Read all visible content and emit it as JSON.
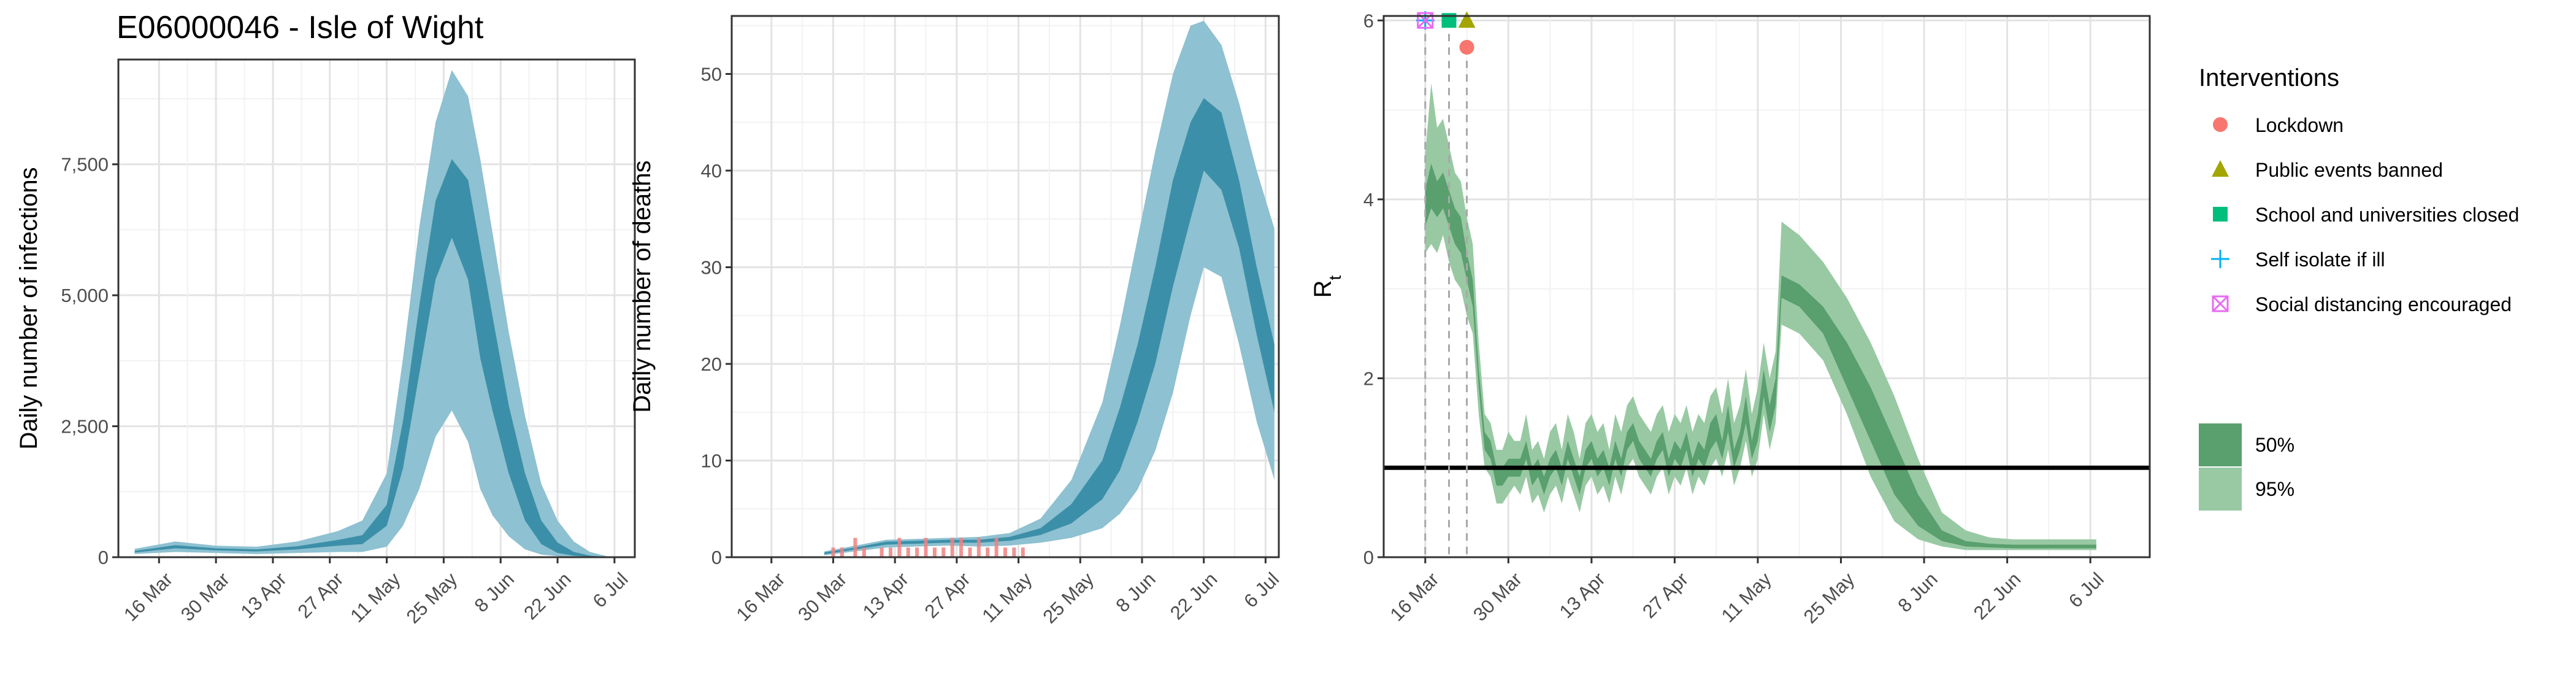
{
  "title": "E06000046 - Isle of Wight",
  "colors": {
    "band95_blue": "#8ec1d1",
    "band50_blue": "#3c8fa8",
    "band95_green": "#98c9a3",
    "band50_green": "#5a9f6e",
    "observed_deaths": "#f08080",
    "reference_line": "#000000",
    "lockdown": "#f8766d",
    "public_events": "#a3a500",
    "schools": "#00bf7d",
    "self_isolate": "#00b0f6",
    "social_distancing": "#e76bf3"
  },
  "chart_data": [
    {
      "type": "area",
      "name": "infections",
      "ylabel": "Daily number of infections",
      "xlabel": "",
      "x_ticks": [
        "16 Mar",
        "30 Mar",
        "13 Apr",
        "27 Apr",
        "11 May",
        "25 May",
        "8 Jun",
        "22 Jun",
        "6 Jul"
      ],
      "y_ticks": [
        "0",
        "2,500",
        "5,000",
        "7,500"
      ],
      "ylim": [
        0,
        9500
      ],
      "x_start": "2020-03-10",
      "bands": {
        "x": [
          "2020-03-10",
          "2020-03-20",
          "2020-03-30",
          "2020-04-09",
          "2020-04-19",
          "2020-04-29",
          "2020-05-05",
          "2020-05-11",
          "2020-05-15",
          "2020-05-19",
          "2020-05-23",
          "2020-05-27",
          "2020-05-31",
          "2020-06-03",
          "2020-06-06",
          "2020-06-10",
          "2020-06-14",
          "2020-06-18",
          "2020-06-22",
          "2020-06-26",
          "2020-06-30",
          "2020-07-04"
        ],
        "lo95": [
          60,
          100,
          80,
          60,
          80,
          100,
          100,
          200,
          600,
          1300,
          2300,
          2800,
          2200,
          1300,
          800,
          400,
          150,
          50,
          20,
          10,
          5,
          0
        ],
        "hi95": [
          160,
          300,
          220,
          200,
          300,
          500,
          700,
          1600,
          3800,
          6300,
          8300,
          9300,
          8800,
          7600,
          6200,
          4300,
          2700,
          1400,
          700,
          300,
          100,
          20
        ],
        "lo50": [
          90,
          170,
          130,
          110,
          150,
          220,
          250,
          600,
          1700,
          3500,
          5300,
          6100,
          5300,
          3800,
          2800,
          1600,
          700,
          250,
          80,
          30,
          10,
          2
        ],
        "hi50": [
          120,
          230,
          170,
          150,
          210,
          330,
          420,
          1000,
          2600,
          4800,
          6800,
          7600,
          7200,
          5900,
          4600,
          2900,
          1600,
          700,
          280,
          100,
          30,
          8
        ]
      }
    },
    {
      "type": "area",
      "name": "deaths",
      "ylabel": "Daily number of deaths",
      "xlabel": "",
      "x_ticks": [
        "16 Mar",
        "30 Mar",
        "13 Apr",
        "27 Apr",
        "11 May",
        "25 May",
        "8 Jun",
        "22 Jun",
        "6 Jul"
      ],
      "y_ticks": [
        "0",
        "10",
        "20",
        "30",
        "40",
        "50"
      ],
      "ylim": [
        0,
        56
      ],
      "bands": {
        "x": [
          "2020-03-28",
          "2020-04-04",
          "2020-04-11",
          "2020-04-18",
          "2020-04-25",
          "2020-05-02",
          "2020-05-09",
          "2020-05-16",
          "2020-05-23",
          "2020-05-30",
          "2020-06-03",
          "2020-06-07",
          "2020-06-11",
          "2020-06-15",
          "2020-06-19",
          "2020-06-22",
          "2020-06-26",
          "2020-06-30",
          "2020-07-04",
          "2020-07-08"
        ],
        "lo95": [
          0.2,
          0.6,
          1.0,
          1.1,
          1.2,
          1.1,
          1.2,
          1.5,
          2.0,
          3.0,
          4.5,
          7.0,
          11.0,
          17.0,
          25.0,
          30.0,
          29.0,
          22.0,
          14.0,
          8.0
        ],
        "hi95": [
          0.6,
          1.2,
          1.8,
          1.9,
          2.0,
          2.1,
          2.5,
          4.0,
          8.0,
          16.0,
          24.0,
          33.0,
          42.0,
          50.0,
          55.0,
          55.5,
          53.0,
          47.0,
          40.0,
          34.0
        ],
        "lo50": [
          0.3,
          0.8,
          1.3,
          1.4,
          1.5,
          1.5,
          1.7,
          2.3,
          3.5,
          6.0,
          9.0,
          14.0,
          20.0,
          28.0,
          35.0,
          40.0,
          38.0,
          32.0,
          23.0,
          15.0
        ],
        "hi50": [
          0.5,
          1.0,
          1.6,
          1.7,
          1.8,
          1.8,
          2.1,
          3.0,
          5.5,
          10.0,
          15.5,
          22.0,
          30.0,
          39.0,
          45.0,
          47.5,
          46.0,
          39.0,
          30.0,
          22.0
        ]
      },
      "observed_x": [
        "2020-03-30",
        "2020-04-01",
        "2020-04-03",
        "2020-04-04",
        "2020-04-06",
        "2020-04-08",
        "2020-04-10",
        "2020-04-12",
        "2020-04-14",
        "2020-04-16",
        "2020-04-18",
        "2020-04-20",
        "2020-04-22",
        "2020-04-24",
        "2020-04-26",
        "2020-04-28",
        "2020-04-30",
        "2020-05-02",
        "2020-05-04",
        "2020-05-06",
        "2020-05-08",
        "2020-05-10",
        "2020-05-12"
      ],
      "observed_y": [
        1,
        1,
        0,
        2,
        1,
        0,
        1,
        1,
        2,
        1,
        1,
        2,
        1,
        1,
        2,
        2,
        1,
        2,
        1,
        2,
        1,
        1,
        1
      ]
    },
    {
      "type": "area",
      "name": "rt",
      "ylabel": "R",
      "ylabel_sub": "t",
      "xlabel": "",
      "x_ticks": [
        "16 Mar",
        "30 Mar",
        "13 Apr",
        "27 Apr",
        "11 May",
        "25 May",
        "8 Jun",
        "22 Jun",
        "6 Jul"
      ],
      "y_ticks": [
        "0",
        "2",
        "4",
        "6"
      ],
      "ylim": [
        0,
        6.05
      ],
      "reference_line": 1,
      "bands": {
        "x": [
          "2020-03-16",
          "2020-03-17",
          "2020-03-18",
          "2020-03-19",
          "2020-03-20",
          "2020-03-21",
          "2020-03-22",
          "2020-03-23",
          "2020-03-24",
          "2020-03-25",
          "2020-03-26",
          "2020-03-27",
          "2020-03-28",
          "2020-03-29",
          "2020-03-30",
          "2020-03-31",
          "2020-04-01",
          "2020-04-02",
          "2020-04-03",
          "2020-04-04",
          "2020-04-05",
          "2020-04-06",
          "2020-04-07",
          "2020-04-08",
          "2020-04-09",
          "2020-04-10",
          "2020-04-11",
          "2020-04-12",
          "2020-04-13",
          "2020-04-14",
          "2020-04-15",
          "2020-04-16",
          "2020-04-17",
          "2020-04-18",
          "2020-04-19",
          "2020-04-20",
          "2020-04-21",
          "2020-04-22",
          "2020-04-23",
          "2020-04-24",
          "2020-04-25",
          "2020-04-26",
          "2020-04-27",
          "2020-04-28",
          "2020-04-29",
          "2020-04-30",
          "2020-05-01",
          "2020-05-02",
          "2020-05-03",
          "2020-05-04",
          "2020-05-05",
          "2020-05-06",
          "2020-05-07",
          "2020-05-08",
          "2020-05-09",
          "2020-05-10",
          "2020-05-11",
          "2020-05-12",
          "2020-05-13",
          "2020-05-14",
          "2020-05-15",
          "2020-05-18",
          "2020-05-22",
          "2020-05-26",
          "2020-05-30",
          "2020-06-03",
          "2020-06-07",
          "2020-06-11",
          "2020-06-15",
          "2020-06-19",
          "2020-06-23",
          "2020-06-27",
          "2020-07-01",
          "2020-07-05",
          "2020-07-07"
        ],
        "lo95": [
          3.4,
          3.5,
          3.4,
          3.6,
          3.3,
          3.1,
          3.0,
          2.7,
          2.5,
          1.6,
          1.0,
          0.9,
          0.6,
          0.6,
          0.7,
          0.8,
          0.7,
          0.9,
          0.6,
          0.7,
          0.5,
          0.7,
          0.8,
          0.6,
          0.9,
          0.7,
          0.5,
          0.8,
          0.9,
          0.7,
          0.8,
          0.6,
          0.9,
          0.7,
          1.0,
          1.1,
          0.9,
          0.8,
          0.7,
          0.9,
          1.0,
          0.7,
          0.9,
          0.8,
          1.0,
          0.7,
          0.9,
          0.8,
          1.0,
          1.1,
          0.9,
          1.2,
          0.8,
          1.0,
          1.3,
          0.9,
          1.1,
          1.6,
          1.2,
          1.5,
          2.6,
          2.5,
          2.2,
          1.6,
          0.9,
          0.4,
          0.2,
          0.12,
          0.08,
          0.08,
          0.08,
          0.08,
          0.08,
          0.08,
          0.08
        ],
        "hi95": [
          4.5,
          5.3,
          4.8,
          4.9,
          4.6,
          4.3,
          4.2,
          3.8,
          3.5,
          2.4,
          1.6,
          1.5,
          1.2,
          1.2,
          1.4,
          1.3,
          1.3,
          1.6,
          1.2,
          1.3,
          1.1,
          1.4,
          1.5,
          1.2,
          1.6,
          1.4,
          1.1,
          1.5,
          1.6,
          1.4,
          1.5,
          1.2,
          1.6,
          1.4,
          1.7,
          1.8,
          1.6,
          1.5,
          1.4,
          1.6,
          1.7,
          1.4,
          1.6,
          1.5,
          1.7,
          1.4,
          1.6,
          1.5,
          1.8,
          1.9,
          1.6,
          2.0,
          1.5,
          1.7,
          2.1,
          1.6,
          1.9,
          2.4,
          2.0,
          2.3,
          3.75,
          3.6,
          3.3,
          2.9,
          2.4,
          1.8,
          1.1,
          0.5,
          0.3,
          0.22,
          0.2,
          0.2,
          0.2,
          0.2,
          0.2
        ],
        "lo50": [
          3.7,
          3.9,
          3.8,
          3.9,
          3.7,
          3.5,
          3.4,
          3.1,
          2.8,
          1.9,
          1.2,
          1.1,
          0.8,
          0.8,
          0.9,
          0.9,
          0.9,
          1.1,
          0.8,
          0.9,
          0.7,
          0.9,
          1.0,
          0.8,
          1.1,
          0.9,
          0.7,
          1.0,
          1.1,
          0.9,
          1.0,
          0.8,
          1.1,
          0.9,
          1.2,
          1.3,
          1.1,
          1.0,
          0.9,
          1.1,
          1.2,
          0.9,
          1.1,
          1.0,
          1.2,
          0.9,
          1.1,
          1.0,
          1.2,
          1.3,
          1.1,
          1.4,
          1.0,
          1.2,
          1.5,
          1.1,
          1.3,
          1.8,
          1.4,
          1.7,
          2.9,
          2.8,
          2.5,
          1.9,
          1.3,
          0.7,
          0.35,
          0.18,
          0.12,
          0.11,
          0.1,
          0.1,
          0.1,
          0.1,
          0.1
        ],
        "hi50": [
          4.1,
          4.4,
          4.2,
          4.3,
          4.1,
          3.9,
          3.8,
          3.4,
          3.1,
          2.1,
          1.4,
          1.3,
          1.0,
          1.0,
          1.1,
          1.1,
          1.1,
          1.3,
          1.0,
          1.1,
          0.9,
          1.1,
          1.2,
          1.0,
          1.3,
          1.1,
          0.9,
          1.2,
          1.3,
          1.1,
          1.2,
          1.0,
          1.3,
          1.1,
          1.4,
          1.5,
          1.3,
          1.2,
          1.1,
          1.3,
          1.4,
          1.1,
          1.3,
          1.2,
          1.4,
          1.1,
          1.3,
          1.2,
          1.5,
          1.6,
          1.3,
          1.7,
          1.2,
          1.4,
          1.8,
          1.3,
          1.6,
          2.1,
          1.7,
          2.0,
          3.15,
          3.05,
          2.8,
          2.4,
          1.9,
          1.3,
          0.7,
          0.3,
          0.18,
          0.15,
          0.14,
          0.14,
          0.14,
          0.14,
          0.14
        ]
      },
      "interventions": [
        {
          "key": "lockdown",
          "label": "Lockdown",
          "date": "2020-03-23",
          "y": 5.7,
          "shape": "circle"
        },
        {
          "key": "public_events",
          "label": "Public events banned",
          "date": "2020-03-23",
          "y": 6.0,
          "shape": "triangle"
        },
        {
          "key": "schools",
          "label": "School and universities closed",
          "date": "2020-03-20",
          "y": 6.0,
          "shape": "square"
        },
        {
          "key": "self_isolate",
          "label": "Self isolate if ill",
          "date": "2020-03-16",
          "y": 6.0,
          "shape": "plus"
        },
        {
          "key": "social_distancing",
          "label": "Social distancing encouraged",
          "date": "2020-03-16",
          "y": 6.0,
          "shape": "boxx"
        }
      ]
    }
  ],
  "legend": {
    "interventions_title": "Interventions",
    "interventions": [
      {
        "key": "lockdown",
        "label": "Lockdown",
        "shape": "circle"
      },
      {
        "key": "public_events",
        "label": "Public events banned",
        "shape": "triangle"
      },
      {
        "key": "schools",
        "label": "School and universities closed",
        "shape": "square"
      },
      {
        "key": "self_isolate",
        "label": "Self isolate if ill",
        "shape": "plus"
      },
      {
        "key": "social_distancing",
        "label": "Social distancing encouraged",
        "shape": "boxx"
      }
    ],
    "bands": [
      {
        "label": "50%",
        "key": "band50_green"
      },
      {
        "label": "95%",
        "key": "band95_green"
      }
    ]
  }
}
